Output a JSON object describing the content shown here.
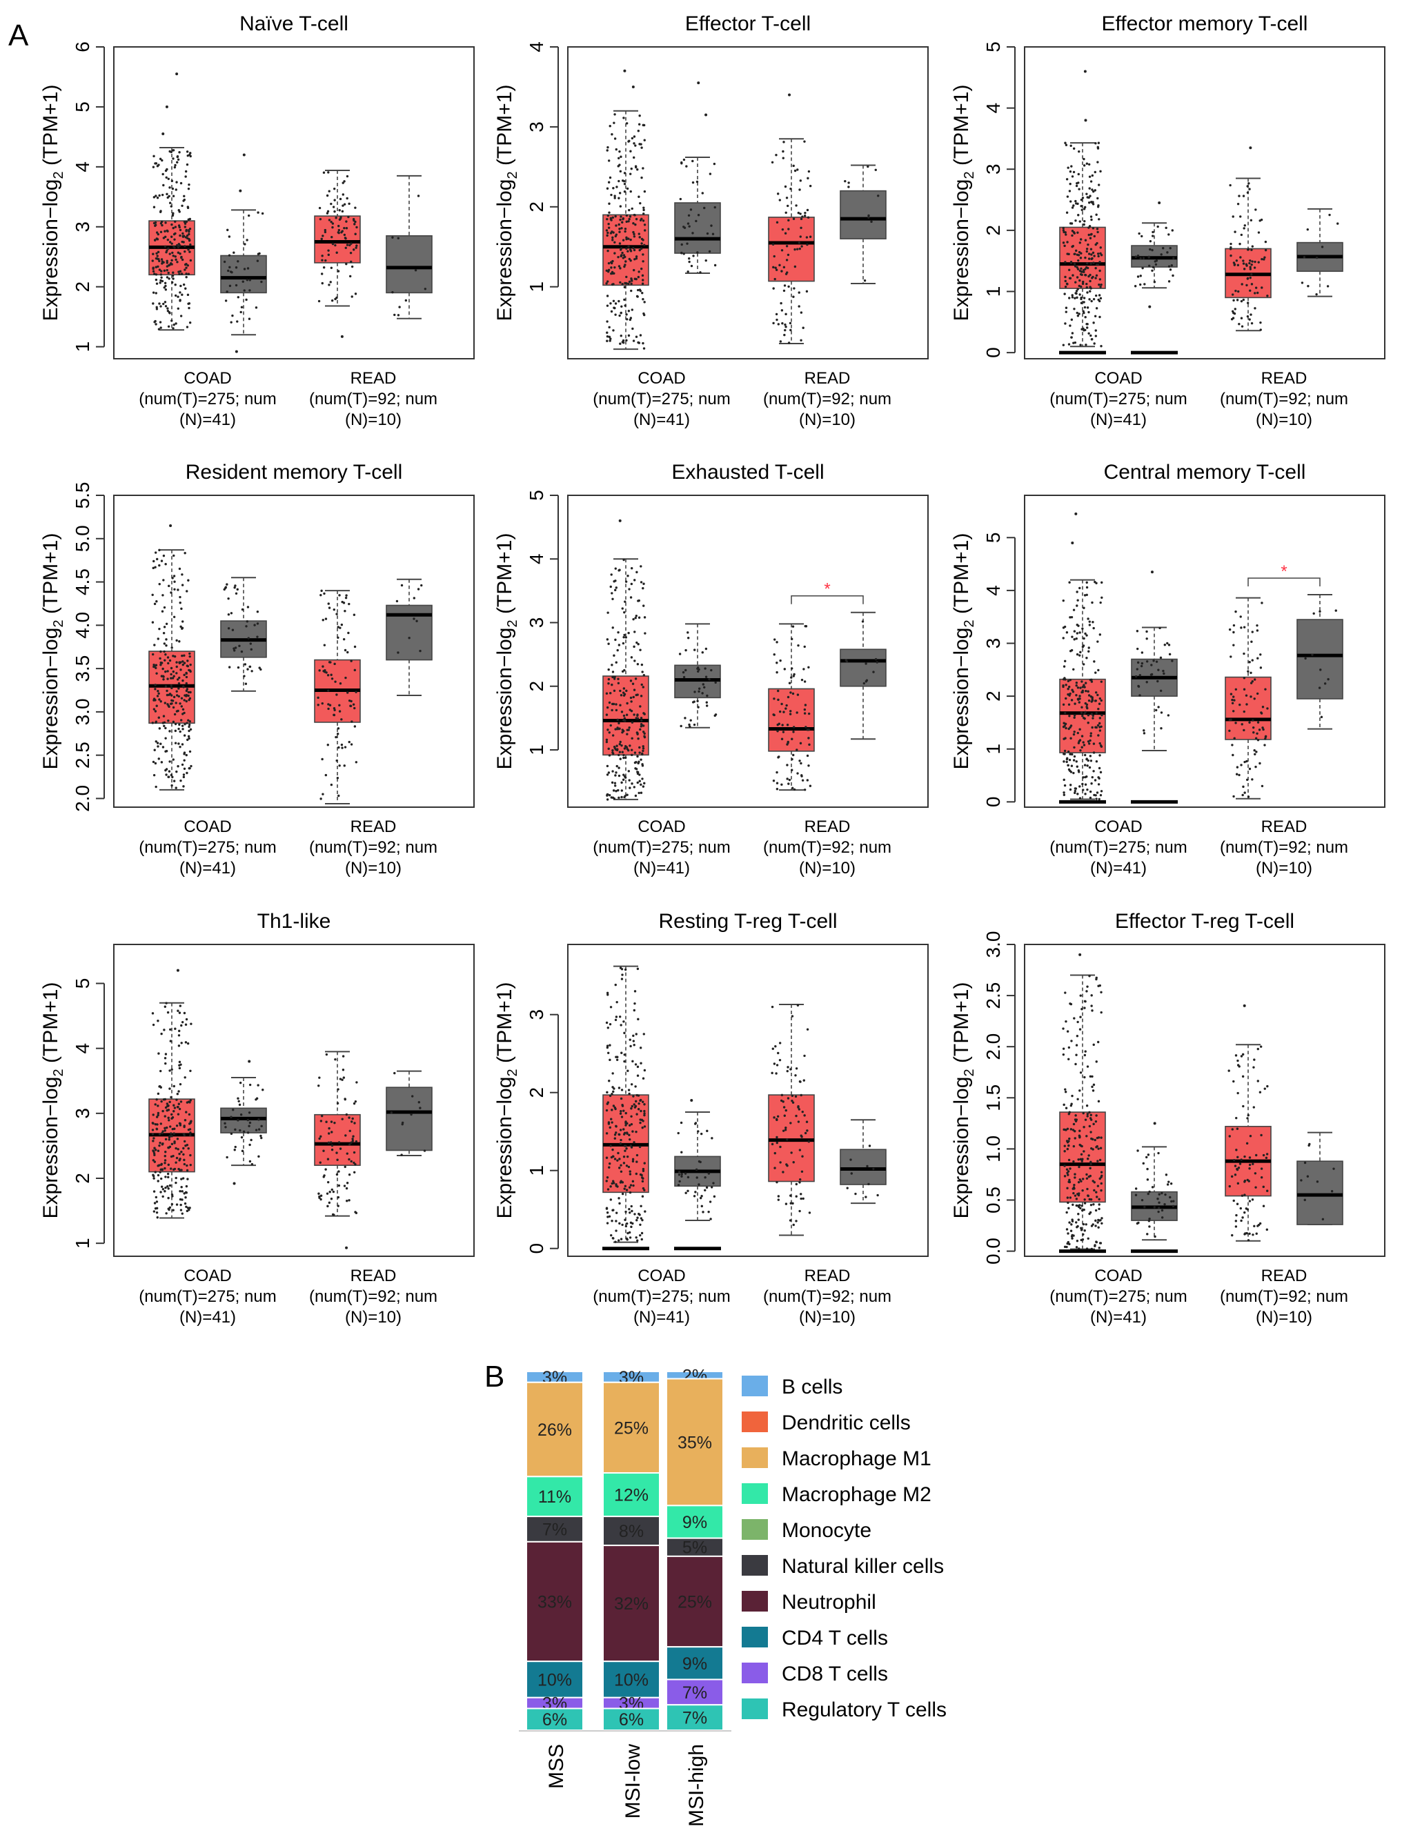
{
  "panel_labels": [
    "A",
    "B"
  ],
  "box_groups": [
    {
      "name": "COAD",
      "lines": [
        "COAD",
        "(num(T)=275; num",
        "(N)=41)"
      ]
    },
    {
      "name": "READ",
      "lines": [
        "READ",
        "(num(T)=92; num",
        "(N)=10)"
      ]
    }
  ],
  "y_label": "Expression−log",
  "y_label_sub": "2",
  "y_label_tail": " (TPM+1)",
  "colors": {
    "tumor": "#f25a5a",
    "normal": "#6a6a6a",
    "significance": "#ff3344"
  },
  "significance_mark": "*",
  "chart_data": [
    {
      "type": "box",
      "title": "Naïve T-cell",
      "ylim": [
        0.8,
        6.0
      ],
      "yticks": [
        1,
        2,
        3,
        4,
        5,
        6
      ],
      "tick_labels": [
        "1",
        "2",
        "3",
        "4",
        "5",
        "6"
      ],
      "boxes": [
        {
          "group": "COAD",
          "kind": "tumor",
          "min": 1.28,
          "q1": 2.2,
          "median": 2.66,
          "q3": 3.1,
          "max": 4.32,
          "outliers": [
            4.55,
            5.0,
            5.55
          ]
        },
        {
          "group": "COAD",
          "kind": "normal",
          "min": 1.2,
          "q1": 1.9,
          "median": 2.15,
          "q3": 2.52,
          "max": 3.28,
          "outliers": [
            3.6,
            4.2,
            0.92
          ]
        },
        {
          "group": "READ",
          "kind": "tumor",
          "min": 1.68,
          "q1": 2.4,
          "median": 2.75,
          "q3": 3.18,
          "max": 3.94,
          "outliers": [
            1.17
          ]
        },
        {
          "group": "READ",
          "kind": "normal",
          "min": 1.47,
          "q1": 1.9,
          "median": 2.32,
          "q3": 2.85,
          "max": 3.85,
          "outliers": []
        }
      ],
      "significant": false,
      "zero_marks": false
    },
    {
      "type": "box",
      "title": "Effector T-cell",
      "ylim": [
        0.1,
        4.0
      ],
      "yticks": [
        1,
        2,
        3,
        4
      ],
      "tick_labels": [
        "1",
        "2",
        "3",
        "4"
      ],
      "boxes": [
        {
          "group": "COAD",
          "kind": "tumor",
          "min": 0.22,
          "q1": 1.02,
          "median": 1.5,
          "q3": 1.9,
          "max": 3.2,
          "outliers": [
            3.5,
            3.7
          ]
        },
        {
          "group": "COAD",
          "kind": "normal",
          "min": 1.17,
          "q1": 1.42,
          "median": 1.6,
          "q3": 2.05,
          "max": 2.62,
          "outliers": [
            3.15,
            3.55
          ]
        },
        {
          "group": "READ",
          "kind": "tumor",
          "min": 0.29,
          "q1": 1.07,
          "median": 1.55,
          "q3": 1.87,
          "max": 2.85,
          "outliers": [
            3.4
          ]
        },
        {
          "group": "READ",
          "kind": "normal",
          "min": 1.04,
          "q1": 1.6,
          "median": 1.85,
          "q3": 2.2,
          "max": 2.52,
          "outliers": []
        }
      ],
      "significant": false,
      "zero_marks": false
    },
    {
      "type": "box",
      "title": "Effector memory T-cell",
      "ylim": [
        -0.1,
        5.0
      ],
      "yticks": [
        0,
        1,
        2,
        3,
        4,
        5
      ],
      "tick_labels": [
        "0",
        "1",
        "2",
        "3",
        "4",
        "5"
      ],
      "boxes": [
        {
          "group": "COAD",
          "kind": "tumor",
          "min": 0.1,
          "q1": 1.05,
          "median": 1.45,
          "q3": 2.05,
          "max": 3.43,
          "outliers": [
            3.8,
            4.6
          ]
        },
        {
          "group": "COAD",
          "kind": "normal",
          "min": 1.06,
          "q1": 1.4,
          "median": 1.55,
          "q3": 1.75,
          "max": 2.12,
          "outliers": [
            0.75,
            2.45
          ]
        },
        {
          "group": "READ",
          "kind": "tumor",
          "min": 0.36,
          "q1": 0.9,
          "median": 1.28,
          "q3": 1.7,
          "max": 2.85,
          "outliers": [
            3.35
          ]
        },
        {
          "group": "READ",
          "kind": "normal",
          "min": 0.92,
          "q1": 1.33,
          "median": 1.57,
          "q3": 1.8,
          "max": 2.35,
          "outliers": []
        }
      ],
      "significant": false,
      "zero_marks": true
    },
    {
      "type": "box",
      "title": "Resident memory T-cell",
      "ylim": [
        1.9,
        5.5
      ],
      "yticks": [
        2.0,
        2.5,
        3.0,
        3.5,
        4.0,
        4.5,
        5.0,
        5.5
      ],
      "tick_labels": [
        "2.0",
        "2.5",
        "3.0",
        "3.5",
        "4.0",
        "4.5",
        "5.0",
        "5.5"
      ],
      "boxes": [
        {
          "group": "COAD",
          "kind": "tumor",
          "min": 2.1,
          "q1": 2.87,
          "median": 3.3,
          "q3": 3.7,
          "max": 4.87,
          "outliers": [
            5.15
          ]
        },
        {
          "group": "COAD",
          "kind": "normal",
          "min": 3.24,
          "q1": 3.63,
          "median": 3.83,
          "q3": 4.05,
          "max": 4.55,
          "outliers": []
        },
        {
          "group": "READ",
          "kind": "tumor",
          "min": 1.94,
          "q1": 2.88,
          "median": 3.25,
          "q3": 3.6,
          "max": 4.4,
          "outliers": []
        },
        {
          "group": "READ",
          "kind": "normal",
          "min": 3.19,
          "q1": 3.6,
          "median": 4.12,
          "q3": 4.23,
          "max": 4.53,
          "outliers": []
        }
      ],
      "significant": false,
      "zero_marks": false
    },
    {
      "type": "box",
      "title": "Exhausted T-cell",
      "ylim": [
        0.1,
        5.0
      ],
      "yticks": [
        1,
        2,
        3,
        4,
        5
      ],
      "tick_labels": [
        "1",
        "2",
        "3",
        "4",
        "5"
      ],
      "boxes": [
        {
          "group": "COAD",
          "kind": "tumor",
          "min": 0.22,
          "q1": 0.92,
          "median": 1.46,
          "q3": 2.16,
          "max": 4.0,
          "outliers": [
            4.6
          ]
        },
        {
          "group": "COAD",
          "kind": "normal",
          "min": 1.35,
          "q1": 1.82,
          "median": 2.1,
          "q3": 2.33,
          "max": 2.98,
          "outliers": []
        },
        {
          "group": "READ",
          "kind": "tumor",
          "min": 0.37,
          "q1": 0.98,
          "median": 1.33,
          "q3": 1.96,
          "max": 2.98,
          "outliers": []
        },
        {
          "group": "READ",
          "kind": "normal",
          "min": 1.17,
          "q1": 2.0,
          "median": 2.4,
          "q3": 2.58,
          "max": 3.16,
          "outliers": []
        }
      ],
      "significant": true,
      "zero_marks": false
    },
    {
      "type": "box",
      "title": "Central memory T-cell",
      "ylim": [
        -0.1,
        5.8
      ],
      "yticks": [
        0,
        1,
        2,
        3,
        4,
        5
      ],
      "tick_labels": [
        "0",
        "1",
        "2",
        "3",
        "4",
        "5"
      ],
      "boxes": [
        {
          "group": "COAD",
          "kind": "tumor",
          "min": 0.05,
          "q1": 0.93,
          "median": 1.68,
          "q3": 2.32,
          "max": 4.2,
          "outliers": [
            4.9,
            5.45
          ]
        },
        {
          "group": "COAD",
          "kind": "normal",
          "min": 0.97,
          "q1": 2.0,
          "median": 2.35,
          "q3": 2.7,
          "max": 3.3,
          "outliers": [
            4.35
          ]
        },
        {
          "group": "READ",
          "kind": "tumor",
          "min": 0.06,
          "q1": 1.18,
          "median": 1.56,
          "q3": 2.36,
          "max": 3.86,
          "outliers": []
        },
        {
          "group": "READ",
          "kind": "normal",
          "min": 1.38,
          "q1": 1.95,
          "median": 2.77,
          "q3": 3.45,
          "max": 3.92,
          "outliers": []
        }
      ],
      "significant": true,
      "zero_marks": true
    },
    {
      "type": "box",
      "title": "Th1-like",
      "ylim": [
        0.8,
        5.6
      ],
      "yticks": [
        1,
        2,
        3,
        4,
        5
      ],
      "tick_labels": [
        "1",
        "2",
        "3",
        "4",
        "5"
      ],
      "boxes": [
        {
          "group": "COAD",
          "kind": "tumor",
          "min": 1.39,
          "q1": 2.1,
          "median": 2.67,
          "q3": 3.22,
          "max": 4.7,
          "outliers": [
            5.2
          ]
        },
        {
          "group": "COAD",
          "kind": "normal",
          "min": 2.2,
          "q1": 2.7,
          "median": 2.92,
          "q3": 3.08,
          "max": 3.55,
          "outliers": [
            1.92,
            3.8
          ]
        },
        {
          "group": "READ",
          "kind": "tumor",
          "min": 1.42,
          "q1": 2.2,
          "median": 2.53,
          "q3": 2.98,
          "max": 3.95,
          "outliers": [
            0.93
          ]
        },
        {
          "group": "READ",
          "kind": "normal",
          "min": 2.35,
          "q1": 2.43,
          "median": 3.02,
          "q3": 3.4,
          "max": 3.65,
          "outliers": []
        }
      ],
      "significant": false,
      "zero_marks": false
    },
    {
      "type": "box",
      "title": "Resting T-reg T-cell",
      "ylim": [
        -0.1,
        3.9
      ],
      "yticks": [
        0,
        1,
        2,
        3
      ],
      "tick_labels": [
        "0",
        "1",
        "2",
        "3"
      ],
      "boxes": [
        {
          "group": "COAD",
          "kind": "tumor",
          "min": 0.08,
          "q1": 0.72,
          "median": 1.33,
          "q3": 1.97,
          "max": 3.62,
          "outliers": []
        },
        {
          "group": "COAD",
          "kind": "normal",
          "min": 0.36,
          "q1": 0.8,
          "median": 0.99,
          "q3": 1.18,
          "max": 1.75,
          "outliers": [
            1.9
          ]
        },
        {
          "group": "READ",
          "kind": "tumor",
          "min": 0.17,
          "q1": 0.86,
          "median": 1.39,
          "q3": 1.97,
          "max": 3.13,
          "outliers": []
        },
        {
          "group": "READ",
          "kind": "normal",
          "min": 0.58,
          "q1": 0.82,
          "median": 1.02,
          "q3": 1.27,
          "max": 1.65,
          "outliers": []
        }
      ],
      "significant": false,
      "zero_marks": true
    },
    {
      "type": "box",
      "title": "Effector T-reg T-cell",
      "ylim": [
        -0.05,
        3.0
      ],
      "yticks": [
        0.0,
        0.5,
        1.0,
        1.5,
        2.0,
        2.5,
        3.0
      ],
      "tick_labels": [
        "0.0",
        "0.5",
        "1.0",
        "1.5",
        "2.0",
        "2.5",
        "3.0"
      ],
      "boxes": [
        {
          "group": "COAD",
          "kind": "tumor",
          "min": 0.02,
          "q1": 0.48,
          "median": 0.85,
          "q3": 1.36,
          "max": 2.7,
          "outliers": [
            2.9
          ]
        },
        {
          "group": "COAD",
          "kind": "normal",
          "min": 0.11,
          "q1": 0.3,
          "median": 0.43,
          "q3": 0.58,
          "max": 1.02,
          "outliers": [
            1.25
          ]
        },
        {
          "group": "READ",
          "kind": "tumor",
          "min": 0.1,
          "q1": 0.54,
          "median": 0.88,
          "q3": 1.22,
          "max": 2.02,
          "outliers": [
            2.4
          ]
        },
        {
          "group": "READ",
          "kind": "normal",
          "min": 0.26,
          "q1": 0.26,
          "median": 0.55,
          "q3": 0.88,
          "max": 1.16,
          "outliers": []
        }
      ],
      "significant": false,
      "zero_marks": true
    },
    {
      "type": "bar",
      "stacked": true,
      "categories": [
        "MSS",
        "MSI-low",
        "MSI-high"
      ],
      "series": [
        {
          "name": "B cells",
          "color": "#6aaee8",
          "values": [
            3,
            3,
            2
          ]
        },
        {
          "name": "Dendritic cells",
          "color": "#f0643c",
          "values": [
            0,
            0,
            0
          ]
        },
        {
          "name": "Macrophage M1",
          "color": "#e8b05c",
          "values": [
            26,
            25,
            35
          ]
        },
        {
          "name": "Macrophage M2",
          "color": "#33e8a8",
          "values": [
            11,
            12,
            9
          ]
        },
        {
          "name": "Monocyte",
          "color": "#7cb46a",
          "values": [
            0,
            0,
            0
          ]
        },
        {
          "name": "Natural killer cells",
          "color": "#3a3a40",
          "values": [
            7,
            8,
            5
          ]
        },
        {
          "name": "Neutrophil",
          "color": "#5a2236",
          "values": [
            33,
            32,
            25
          ]
        },
        {
          "name": "CD4 T cells",
          "color": "#137a92",
          "values": [
            10,
            10,
            9
          ]
        },
        {
          "name": "CD8 T cells",
          "color": "#8a5ce8",
          "values": [
            3,
            3,
            7
          ]
        },
        {
          "name": "Regulatory T cells",
          "color": "#2ec4b4",
          "values": [
            6,
            6,
            7
          ]
        }
      ],
      "value_labels": [
        [
          "3%",
          "",
          "26%",
          "11%",
          "",
          "7%",
          "33%",
          "10%",
          "3%",
          "6%"
        ],
        [
          "3%",
          "",
          "25%",
          "12%",
          "",
          "8%",
          "32%",
          "10%",
          "3%",
          "6%"
        ],
        [
          "2%",
          "",
          "35%",
          "9%",
          "",
          "5%",
          "25%",
          "9%",
          "7%",
          "7%"
        ]
      ]
    }
  ]
}
